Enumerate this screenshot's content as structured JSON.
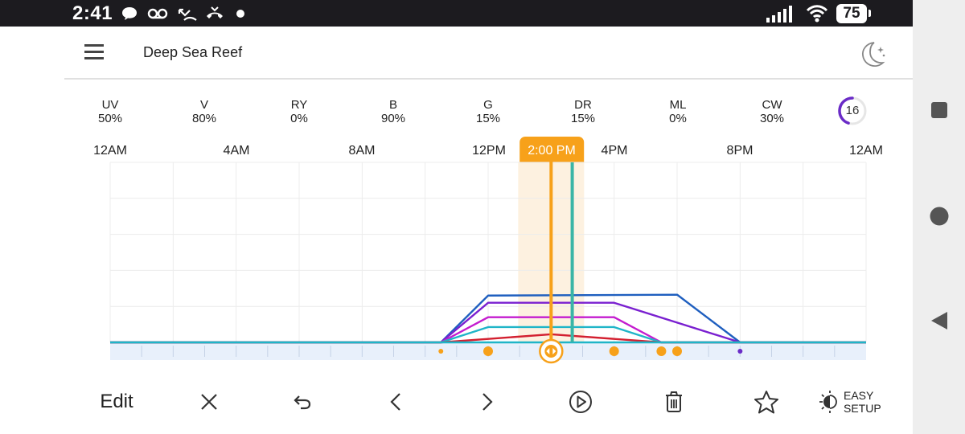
{
  "status": {
    "time": "2:41",
    "battery": "75"
  },
  "app": {
    "title": "Deep Sea Reef"
  },
  "channels": [
    {
      "name": "UV",
      "value": "50%"
    },
    {
      "name": "V",
      "value": "80%"
    },
    {
      "name": "RY",
      "value": "0%"
    },
    {
      "name": "B",
      "value": "90%"
    },
    {
      "name": "G",
      "value": "15%"
    },
    {
      "name": "DR",
      "value": "15%"
    },
    {
      "name": "ML",
      "value": "0%"
    },
    {
      "name": "CW",
      "value": "30%"
    }
  ],
  "badge": {
    "value": "16",
    "fraction": 0.45,
    "color": "#6a2bc7"
  },
  "time_axis": {
    "labels": [
      "12AM",
      "4AM",
      "8AM",
      "12PM",
      "4PM",
      "8PM",
      "12AM"
    ],
    "selected_time": "2:00 PM"
  },
  "chart_data": {
    "type": "line",
    "x_unit": "hours",
    "xlim": [
      0,
      24
    ],
    "ylim": [
      0,
      100
    ],
    "selected_hour": 14,
    "current_hour": 14.67,
    "series": [
      {
        "color": "#1f5fbf",
        "points": [
          [
            0,
            0
          ],
          [
            10.5,
            0
          ],
          [
            12,
            26
          ],
          [
            18,
            26.5
          ],
          [
            20,
            0
          ],
          [
            24,
            0
          ]
        ]
      },
      {
        "color": "#7a20d0",
        "points": [
          [
            0,
            0
          ],
          [
            10.5,
            0
          ],
          [
            12,
            22
          ],
          [
            16,
            22
          ],
          [
            20,
            0
          ],
          [
            24,
            0
          ]
        ]
      },
      {
        "color": "#c41ccf",
        "points": [
          [
            0,
            0
          ],
          [
            10.5,
            0
          ],
          [
            12,
            14
          ],
          [
            16,
            14
          ],
          [
            17.5,
            0
          ],
          [
            24,
            0
          ]
        ]
      },
      {
        "color": "#1fb5c8",
        "points": [
          [
            0,
            0
          ],
          [
            10.5,
            0
          ],
          [
            12,
            8.5
          ],
          [
            16,
            8.5
          ],
          [
            17.5,
            0
          ],
          [
            24,
            0
          ]
        ]
      },
      {
        "color": "#d32030",
        "points": [
          [
            0,
            0
          ],
          [
            10.5,
            0
          ],
          [
            14,
            4.5
          ],
          [
            17.5,
            0
          ],
          [
            24,
            0
          ]
        ]
      },
      {
        "color": "#1fb5c8",
        "points": [
          [
            0,
            0
          ],
          [
            24,
            0
          ]
        ]
      }
    ],
    "keyframes": [
      10.5,
      12,
      14,
      16,
      17.5,
      18,
      20
    ],
    "colors": {
      "accent": "#f7a11a",
      "current_line": "#3ab5a6",
      "highlight": "#fdf1e0",
      "strip": "#e8f0fb"
    }
  },
  "toolbar": {
    "edit_label": "Edit",
    "easy_setup_line1": "EASY",
    "easy_setup_line2": "SETUP"
  }
}
